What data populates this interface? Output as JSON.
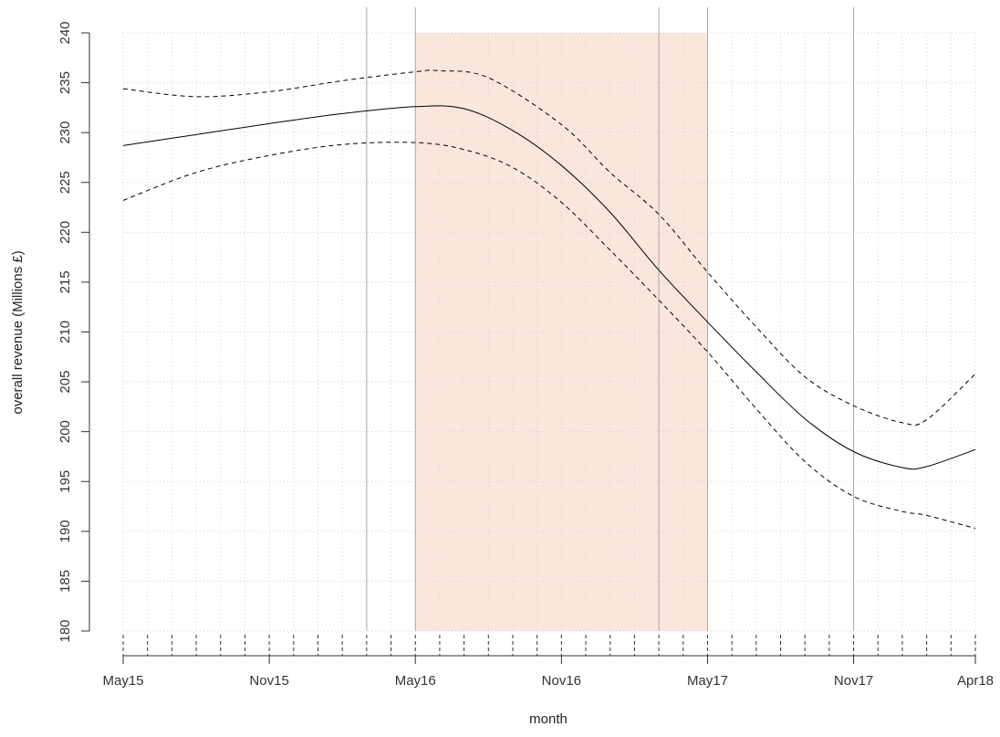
{
  "chart_data": {
    "type": "line",
    "title": "",
    "xlabel": "month",
    "ylabel": "overall revenue (Millions £)",
    "ylim": [
      180,
      240
    ],
    "y_ticks": [
      180,
      185,
      190,
      195,
      200,
      205,
      210,
      215,
      220,
      225,
      230,
      235,
      240
    ],
    "x_range": [
      "2015-05",
      "2018-04"
    ],
    "x_tick_labels": [
      {
        "month": "2015-05",
        "label": "May15"
      },
      {
        "month": "2015-11",
        "label": "Nov15"
      },
      {
        "month": "2016-05",
        "label": "May16"
      },
      {
        "month": "2016-11",
        "label": "Nov16"
      },
      {
        "month": "2017-05",
        "label": "May17"
      },
      {
        "month": "2017-11",
        "label": "Nov17"
      },
      {
        "month": "2018-04",
        "label": "Apr18"
      }
    ],
    "minor_tick_months": [
      "2015-05",
      "2015-06",
      "2015-07",
      "2015-08",
      "2015-09",
      "2015-10",
      "2015-11",
      "2015-12",
      "2016-01",
      "2016-02",
      "2016-03",
      "2016-04",
      "2016-05",
      "2016-06",
      "2016-07",
      "2016-08",
      "2016-09",
      "2016-10",
      "2016-11",
      "2016-12",
      "2017-01",
      "2017-02",
      "2017-03",
      "2017-04",
      "2017-05",
      "2017-06",
      "2017-07",
      "2017-08",
      "2017-09",
      "2017-10",
      "2017-11",
      "2017-12",
      "2018-01",
      "2018-02",
      "2018-03",
      "2018-04"
    ],
    "grid": "dotted",
    "shaded_region": {
      "from": "2016-05",
      "to": "2017-05",
      "color": "#fbe6dd"
    },
    "vertical_lines": [
      "2016-03",
      "2016-05",
      "2017-03",
      "2017-05",
      "2017-11"
    ],
    "series": [
      {
        "style": "solid",
        "color": "#000000",
        "x": [
          "2015-05",
          "2015-08",
          "2015-11",
          "2016-02",
          "2016-05",
          "2016-07",
          "2016-09",
          "2016-11",
          "2017-01",
          "2017-03",
          "2017-05",
          "2017-07",
          "2017-09",
          "2017-11",
          "2018-01",
          "2018-02",
          "2018-04"
        ],
        "values": [
          228.7,
          229.8,
          230.9,
          231.9,
          232.6,
          232.4,
          230.2,
          226.7,
          222.0,
          216.2,
          211.0,
          206.0,
          201.3,
          198.0,
          196.4,
          196.5,
          198.2
        ]
      },
      {
        "style": "dashed",
        "color": "#000000",
        "x": [
          "2015-05",
          "2015-08",
          "2015-11",
          "2016-02",
          "2016-05",
          "2016-06",
          "2016-08",
          "2016-11",
          "2017-01",
          "2017-03",
          "2017-05",
          "2017-07",
          "2017-09",
          "2017-11",
          "2018-01",
          "2018-02",
          "2018-04"
        ],
        "values": [
          234.4,
          233.6,
          234.1,
          235.2,
          236.1,
          236.2,
          235.5,
          230.8,
          226.0,
          221.8,
          216.0,
          210.5,
          205.5,
          202.6,
          200.9,
          201.2,
          205.8
        ]
      },
      {
        "style": "dashed",
        "color": "#000000",
        "x": [
          "2015-05",
          "2015-08",
          "2015-11",
          "2016-02",
          "2016-05",
          "2016-07",
          "2016-09",
          "2016-11",
          "2017-01",
          "2017-03",
          "2017-05",
          "2017-07",
          "2017-09",
          "2017-11",
          "2018-01",
          "2018-02",
          "2018-04"
        ],
        "values": [
          223.2,
          226.0,
          227.7,
          228.8,
          229.0,
          228.3,
          226.5,
          223.0,
          218.2,
          213.2,
          208.0,
          202.3,
          197.0,
          193.5,
          192.0,
          191.6,
          190.3
        ]
      }
    ]
  }
}
